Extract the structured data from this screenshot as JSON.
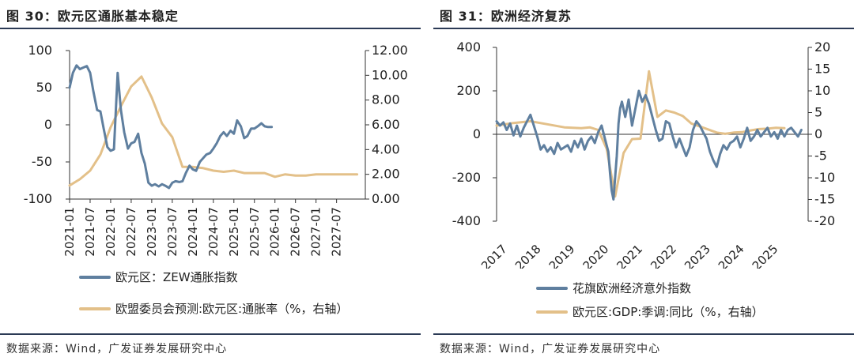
{
  "colors": {
    "blue": "#5f7f9f",
    "tan": "#e3c089",
    "rule": "#2b3a55"
  },
  "panels": [
    {
      "title": "图 30：欧元区通胀基本稳定",
      "source": "数据来源：Wind，广发证券发展研究中心",
      "legend": [
        {
          "label": "欧元区：ZEW通胀指数",
          "color": "#5f7f9f"
        },
        {
          "label": "欧盟委员会预测:欧元区:通胀率（%，右轴）",
          "color": "#e3c089"
        }
      ]
    },
    {
      "title": "图 31：欧洲经济复苏",
      "source": "数据来源：Wind，广发证券发展研究中心",
      "legend": [
        {
          "label": "花旗欧洲经济意外指数",
          "color": "#5f7f9f"
        },
        {
          "label": "欧元区:GDP:季调:同比（%，右轴）",
          "color": "#e3c089"
        }
      ]
    }
  ],
  "chart_data": [
    {
      "type": "line",
      "title": "欧元区通胀基本稳定",
      "categories": [
        "2021-01",
        "2021-07",
        "2022-01",
        "2022-07",
        "2023-01",
        "2023-07",
        "2024-01",
        "2024-07",
        "2025-01",
        "2025-07",
        "2026-01",
        "2026-07",
        "2027-01",
        "2027-07"
      ],
      "x_range": [
        2021.0,
        2028.2
      ],
      "y_left": {
        "range": [
          -100,
          100
        ],
        "ticks": [
          100,
          50,
          0,
          -50,
          -100
        ],
        "tick_labels": [
          "100",
          "50",
          "0",
          "-50",
          "-100"
        ]
      },
      "y_right": {
        "range": [
          0,
          12
        ],
        "ticks": [
          12,
          10,
          8,
          6,
          4,
          2,
          0
        ],
        "tick_labels": [
          "12.00",
          "10.00",
          "8.00",
          "6.00",
          "4.00",
          "2.00",
          "0.00"
        ]
      },
      "series": [
        {
          "name": "欧元区：ZEW通胀指数",
          "axis": "left",
          "x": [
            2021.0,
            2021.08,
            2021.17,
            2021.25,
            2021.33,
            2021.42,
            2021.5,
            2021.58,
            2021.67,
            2021.75,
            2021.83,
            2021.92,
            2022.0,
            2022.08,
            2022.17,
            2022.25,
            2022.33,
            2022.42,
            2022.5,
            2022.58,
            2022.67,
            2022.75,
            2022.83,
            2022.92,
            2023.0,
            2023.08,
            2023.17,
            2023.25,
            2023.33,
            2023.42,
            2023.5,
            2023.58,
            2023.67,
            2023.75,
            2023.83,
            2023.92,
            2024.0,
            2024.08,
            2024.17,
            2024.25,
            2024.33,
            2024.42,
            2024.5,
            2024.58,
            2024.67,
            2024.75,
            2024.83,
            2024.92,
            2025.0,
            2025.08,
            2025.17,
            2025.25,
            2025.33,
            2025.42,
            2025.5,
            2025.58,
            2025.67,
            2025.75,
            2025.83,
            2025.92
          ],
          "y": [
            50,
            70,
            80,
            75,
            77,
            79,
            70,
            45,
            20,
            18,
            -5,
            -30,
            -35,
            -33,
            70,
            20,
            -10,
            -32,
            -25,
            -23,
            -12,
            -38,
            -52,
            -78,
            -82,
            -80,
            -83,
            -80,
            -82,
            -85,
            -78,
            -76,
            -77,
            -76,
            -65,
            -55,
            -60,
            -62,
            -50,
            -45,
            -40,
            -38,
            -32,
            -25,
            -15,
            -10,
            -15,
            -8,
            -12,
            6,
            -2,
            -18,
            -15,
            -5,
            -5,
            -2,
            2,
            -2,
            -3,
            -3
          ]
        },
        {
          "name": "欧盟委员会预测:欧元区:通胀率（%，右轴）",
          "axis": "right",
          "x": [
            2021.0,
            2021.25,
            2021.5,
            2021.75,
            2022.0,
            2022.25,
            2022.5,
            2022.75,
            2023.0,
            2023.25,
            2023.5,
            2023.75,
            2024.0,
            2024.25,
            2024.5,
            2024.75,
            2025.0,
            2025.25,
            2025.5,
            2025.75,
            2026.0,
            2026.25,
            2026.5,
            2026.75,
            2027.0,
            2027.5,
            2028.0
          ],
          "y": [
            1.1,
            1.6,
            2.3,
            3.6,
            5.8,
            7.5,
            9.1,
            9.9,
            8.2,
            6.1,
            5.0,
            2.6,
            2.6,
            2.5,
            2.3,
            2.2,
            2.3,
            2.1,
            2.1,
            2.1,
            1.8,
            2.0,
            1.9,
            1.9,
            2.0,
            2.0,
            2.0
          ]
        }
      ]
    },
    {
      "type": "line",
      "title": "欧洲经济复苏",
      "categories": [
        "2017",
        "2018",
        "2019",
        "2020",
        "2021",
        "2022",
        "2023",
        "2024",
        "2025"
      ],
      "x_range": [
        2017.0,
        2026.2
      ],
      "y_left": {
        "range": [
          -400,
          400
        ],
        "ticks": [
          400,
          200,
          0,
          -200,
          -400
        ],
        "tick_labels": [
          "400",
          "200",
          "0",
          "-200",
          "-400"
        ]
      },
      "y_right": {
        "range": [
          -20,
          20
        ],
        "ticks": [
          20,
          15,
          10,
          5,
          0,
          -5,
          -10,
          -15,
          -20
        ],
        "tick_labels": [
          "20",
          "15",
          "10",
          "5",
          "0",
          "-5",
          "-10",
          "-15",
          "-20"
        ]
      },
      "series": [
        {
          "name": "花旗欧洲经济意外指数",
          "axis": "left",
          "x": [
            2017.0,
            2017.1,
            2017.2,
            2017.3,
            2017.4,
            2017.5,
            2017.6,
            2017.7,
            2017.8,
            2017.9,
            2018.0,
            2018.1,
            2018.2,
            2018.3,
            2018.4,
            2018.5,
            2018.6,
            2018.7,
            2018.8,
            2018.9,
            2019.0,
            2019.1,
            2019.2,
            2019.3,
            2019.4,
            2019.5,
            2019.6,
            2019.7,
            2019.8,
            2019.9,
            2020.0,
            2020.1,
            2020.2,
            2020.3,
            2020.35,
            2020.4,
            2020.45,
            2020.5,
            2020.55,
            2020.6,
            2020.65,
            2020.7,
            2020.8,
            2020.9,
            2021.0,
            2021.1,
            2021.2,
            2021.3,
            2021.4,
            2021.5,
            2021.6,
            2021.7,
            2021.8,
            2021.9,
            2022.0,
            2022.1,
            2022.2,
            2022.3,
            2022.4,
            2022.5,
            2022.6,
            2022.7,
            2022.8,
            2022.9,
            2023.0,
            2023.1,
            2023.2,
            2023.3,
            2023.4,
            2023.5,
            2023.6,
            2023.7,
            2023.8,
            2023.9,
            2024.0,
            2024.1,
            2024.2,
            2024.3,
            2024.4,
            2024.5,
            2024.6,
            2024.7,
            2024.8,
            2024.9,
            2025.0,
            2025.1,
            2025.2,
            2025.3,
            2025.4,
            2025.5,
            2025.6,
            2025.7,
            2025.8,
            2025.9,
            2026.0
          ],
          "y": [
            60,
            40,
            55,
            20,
            50,
            -5,
            40,
            -10,
            30,
            60,
            90,
            40,
            -10,
            -70,
            -50,
            -80,
            -60,
            -90,
            -40,
            -70,
            -60,
            -50,
            -80,
            -30,
            -60,
            -20,
            -70,
            -30,
            -10,
            -40,
            10,
            40,
            -20,
            -80,
            -180,
            -260,
            -300,
            -200,
            -100,
            50,
            120,
            150,
            80,
            160,
            40,
            120,
            200,
            150,
            180,
            140,
            80,
            20,
            -30,
            -20,
            60,
            50,
            -10,
            -60,
            -20,
            -60,
            -100,
            -60,
            20,
            60,
            40,
            10,
            -20,
            -80,
            -120,
            -150,
            -90,
            -50,
            -70,
            -40,
            -30,
            -10,
            -60,
            -20,
            30,
            -30,
            -10,
            20,
            -10,
            10,
            30,
            -10,
            10,
            -20,
            20,
            -10,
            20,
            30,
            10,
            -10,
            20
          ]
        },
        {
          "name": "欧元区:GDP:季调:同比（%，右轴）",
          "axis": "right",
          "x": [
            2017.0,
            2017.5,
            2018.0,
            2018.5,
            2019.0,
            2019.5,
            2019.75,
            2020.0,
            2020.25,
            2020.5,
            2020.75,
            2021.0,
            2021.25,
            2021.5,
            2021.75,
            2022.0,
            2022.25,
            2022.5,
            2022.75,
            2023.0,
            2023.25,
            2023.5,
            2023.75,
            2024.0,
            2024.25,
            2024.5,
            2024.75,
            2025.0,
            2025.25,
            2025.5
          ],
          "y": [
            2.0,
            2.6,
            3.0,
            2.3,
            1.6,
            1.4,
            1.6,
            1.0,
            -3.3,
            -14.3,
            -4.3,
            -1.1,
            -1.0,
            14.5,
            4.0,
            5.5,
            5.0,
            4.2,
            2.5,
            1.8,
            1.1,
            0.4,
            0.1,
            0.4,
            0.5,
            0.9,
            1.2,
            1.3,
            1.5,
            1.4
          ]
        }
      ]
    }
  ]
}
